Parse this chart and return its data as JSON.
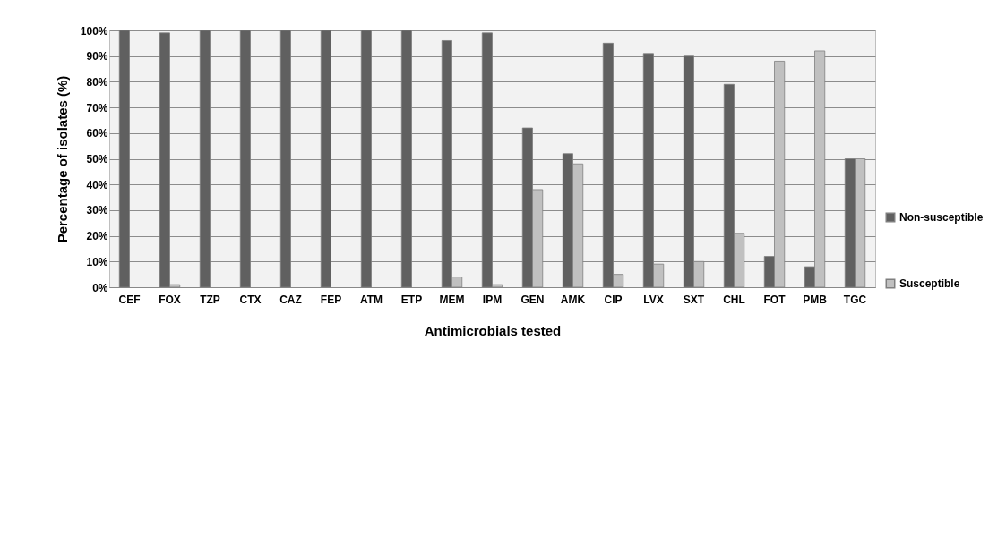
{
  "chart_data": {
    "type": "bar",
    "xlabel": "Antimicrobials tested",
    "ylabel": "Percentage of isolates (%)",
    "categories": [
      "CEF",
      "FOX",
      "TZP",
      "CTX",
      "CAZ",
      "FEP",
      "ATM",
      "ETP",
      "MEM",
      "IPM",
      "GEN",
      "AMK",
      "CIP",
      "LVX",
      "SXT",
      "CHL",
      "FOT",
      "PMB",
      "TGC"
    ],
    "series": [
      {
        "name": "Non-susceptible",
        "color": "#606060",
        "values": [
          100,
          99,
          100,
          100,
          100,
          100,
          100,
          100,
          96,
          99,
          62,
          52,
          95,
          91,
          90,
          79,
          12,
          8,
          50
        ]
      },
      {
        "name": "Susceptible",
        "color": "#c0c0c0",
        "values": [
          null,
          1,
          null,
          null,
          null,
          null,
          null,
          null,
          4,
          1,
          38,
          48,
          5,
          9,
          10,
          21,
          88,
          92,
          50
        ]
      }
    ],
    "ylim": [
      0,
      100
    ],
    "yticks": [
      {
        "value": 0,
        "label": "0%"
      },
      {
        "value": 10,
        "label": "10%"
      },
      {
        "value": 20,
        "label": "20%"
      },
      {
        "value": 30,
        "label": "30%"
      },
      {
        "value": 40,
        "label": "40%"
      },
      {
        "value": 50,
        "label": "50%"
      },
      {
        "value": 60,
        "label": "60%"
      },
      {
        "value": 70,
        "label": "70%"
      },
      {
        "value": 80,
        "label": "80%"
      },
      {
        "value": 90,
        "label": "90%"
      },
      {
        "value": 100,
        "label": "100%"
      }
    ],
    "grid": "y",
    "legend": "right"
  }
}
